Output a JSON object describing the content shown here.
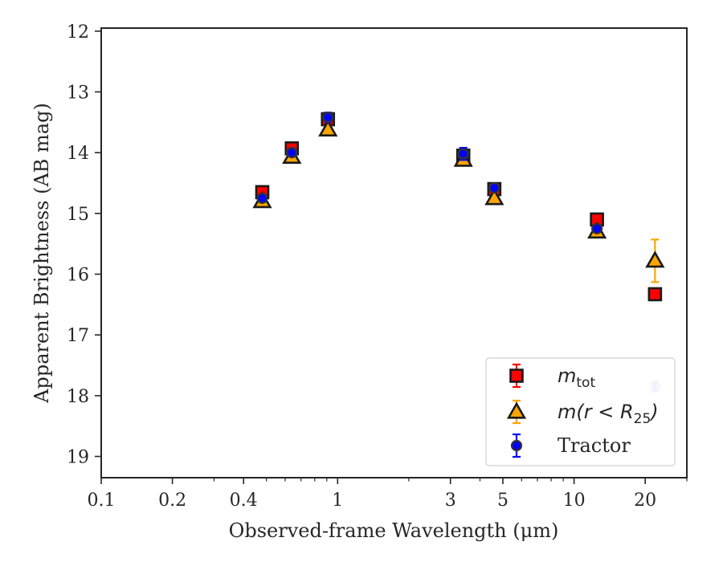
{
  "chart_data": {
    "type": "scatter",
    "title": "",
    "xlabel": "Observed-frame Wavelength (μm)",
    "ylabel": "Apparent Brightness (AB mag)",
    "xscale": "log",
    "xlim": [
      0.1,
      30
    ],
    "ylim": [
      19.35,
      11.95
    ],
    "y_inverted": true,
    "x_ticks": [
      {
        "value": 0.1,
        "label": "0.1"
      },
      {
        "value": 0.2,
        "label": "0.2"
      },
      {
        "value": 0.4,
        "label": "0.4"
      },
      {
        "value": 1,
        "label": "1"
      },
      {
        "value": 3,
        "label": "3"
      },
      {
        "value": 5,
        "label": "5"
      },
      {
        "value": 10,
        "label": "10"
      },
      {
        "value": 20,
        "label": "20"
      }
    ],
    "x_minor_ticks": [
      0.3,
      0.5,
      0.6,
      0.7,
      0.8,
      0.9,
      2,
      4,
      6,
      7,
      8,
      9,
      30
    ],
    "y_ticks": [
      12,
      13,
      14,
      15,
      16,
      17,
      18,
      19
    ],
    "grid": false,
    "legend": {
      "position": "bottom-right",
      "entries": [
        {
          "key": "m_tot",
          "math": "m",
          "sub": "tot",
          "suffix": ""
        },
        {
          "key": "m_r25",
          "math": "m(r < R",
          "sub": "25",
          "suffix": ")"
        },
        {
          "key": "tractor",
          "text": "Tractor"
        }
      ]
    },
    "series": [
      {
        "key": "m_tot",
        "marker": "square",
        "color": "#ff0000",
        "edge": "#1a1a1a",
        "points": [
          {
            "x": 0.48,
            "y": 14.65,
            "err": 0.05
          },
          {
            "x": 0.64,
            "y": 13.93,
            "err": 0.05
          },
          {
            "x": 0.91,
            "y": 13.45,
            "err": 0.05
          },
          {
            "x": 3.4,
            "y": 14.05,
            "err": 0.06
          },
          {
            "x": 4.6,
            "y": 14.6,
            "err": 0.05
          },
          {
            "x": 12.5,
            "y": 15.1,
            "err": 0.06
          },
          {
            "x": 22.0,
            "y": 16.33,
            "err": 0.05
          }
        ]
      },
      {
        "key": "m_r25",
        "marker": "triangle",
        "color": "#ffa500",
        "edge": "#1a1a1a",
        "points": [
          {
            "x": 0.48,
            "y": 14.8,
            "err": 0.05
          },
          {
            "x": 0.64,
            "y": 14.07,
            "err": 0.05
          },
          {
            "x": 0.91,
            "y": 13.62,
            "err": 0.05
          },
          {
            "x": 3.4,
            "y": 14.12,
            "err": 0.05
          },
          {
            "x": 4.6,
            "y": 14.75,
            "err": 0.05
          },
          {
            "x": 12.5,
            "y": 15.3,
            "err": 0.05
          },
          {
            "x": 22.0,
            "y": 15.78,
            "err": 0.35
          }
        ]
      },
      {
        "key": "tractor",
        "marker": "circle",
        "color": "#0000ff",
        "edge": "#333333",
        "points": [
          {
            "x": 0.48,
            "y": 14.75,
            "err": 0.05
          },
          {
            "x": 0.64,
            "y": 14.0,
            "err": 0.05
          },
          {
            "x": 0.91,
            "y": 13.42,
            "err": 0.08
          },
          {
            "x": 3.4,
            "y": 14.02,
            "err": 0.1
          },
          {
            "x": 4.6,
            "y": 14.58,
            "err": 0.05
          },
          {
            "x": 12.5,
            "y": 15.25,
            "err": 0.05
          },
          {
            "x": 22.0,
            "y": 17.85,
            "err": 0.08,
            "faded": true
          }
        ]
      }
    ]
  }
}
